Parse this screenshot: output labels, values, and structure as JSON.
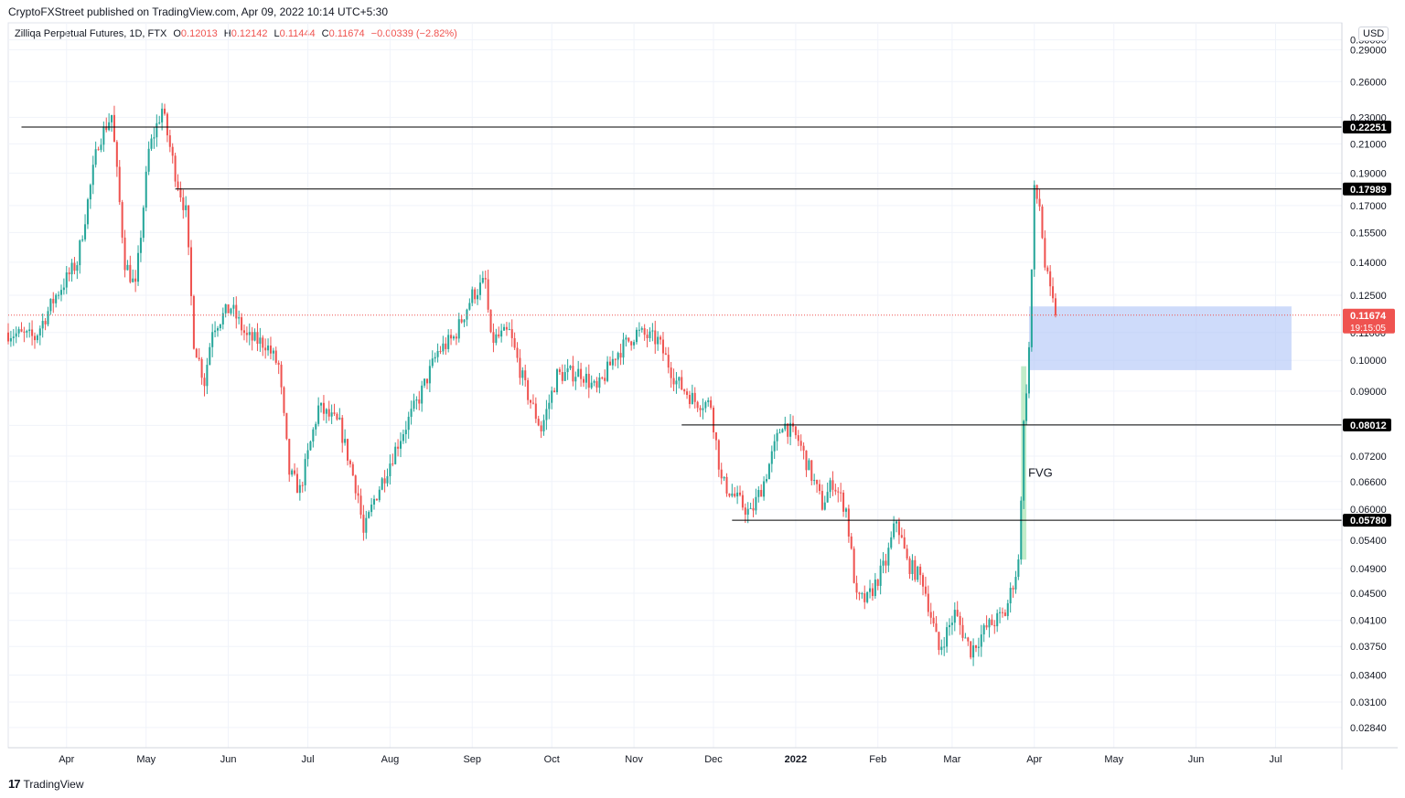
{
  "header": {
    "publisher_line": "CryptoFXStreet published on TradingView.com, Apr 09, 2022 10:14 UTC+5:30"
  },
  "legend": {
    "symbol": "Zilliqa Perpetual Futures, 1D, FTX",
    "o_label": "O",
    "o_value": "0.12013",
    "h_label": "H",
    "h_value": "0.12142",
    "l_label": "L",
    "l_value": "0.11444",
    "c_label": "C",
    "c_value": "0.11674",
    "change": "−0.00339 (−2.82%)"
  },
  "currency_badge": "USD",
  "footer": {
    "brand": "TradingView",
    "logo_glyph": "17"
  },
  "colors": {
    "up": "#26a69a",
    "down": "#ef5350",
    "zone": "#b3c7f7",
    "fvg": "#b7e9c0",
    "level": "#000000",
    "last_price": "#ef5350"
  },
  "chart_data": {
    "type": "candlestick",
    "title": "Zilliqa Perpetual Futures, 1D, FTX",
    "y_scale": "log",
    "ylim": [
      0.0265,
      0.318
    ],
    "xlim": [
      "2021-03-10",
      "2022-07-26"
    ],
    "grid": true,
    "y_ticks": [
      0.3,
      0.29,
      0.26,
      0.23,
      0.21,
      0.19,
      0.17,
      0.155,
      0.14,
      0.125,
      0.11,
      0.1,
      0.09,
      0.08,
      0.072,
      0.066,
      0.06,
      0.054,
      0.049,
      0.045,
      0.041,
      0.0375,
      0.034,
      0.031,
      0.0284
    ],
    "x_ticks": [
      {
        "label": "Apr",
        "date": "2021-04-01",
        "bold": false
      },
      {
        "label": "May",
        "date": "2021-05-01",
        "bold": false
      },
      {
        "label": "Jun",
        "date": "2021-06-01",
        "bold": false
      },
      {
        "label": "Jul",
        "date": "2021-07-01",
        "bold": false
      },
      {
        "label": "Aug",
        "date": "2021-08-01",
        "bold": false
      },
      {
        "label": "Sep",
        "date": "2021-09-01",
        "bold": false
      },
      {
        "label": "Oct",
        "date": "2021-10-01",
        "bold": false
      },
      {
        "label": "Nov",
        "date": "2021-11-01",
        "bold": false
      },
      {
        "label": "Dec",
        "date": "2021-12-01",
        "bold": false
      },
      {
        "label": "2022",
        "date": "2022-01-01",
        "bold": true
      },
      {
        "label": "Feb",
        "date": "2022-02-01",
        "bold": false
      },
      {
        "label": "Mar",
        "date": "2022-03-01",
        "bold": false
      },
      {
        "label": "Apr",
        "date": "2022-04-01",
        "bold": false
      },
      {
        "label": "May",
        "date": "2022-05-01",
        "bold": false
      },
      {
        "label": "Jun",
        "date": "2022-06-01",
        "bold": false
      },
      {
        "label": "Jul",
        "date": "2022-07-01",
        "bold": false
      }
    ],
    "levels": [
      {
        "value": 0.22251,
        "label": "0.22251",
        "from": "2021-03-15"
      },
      {
        "value": 0.17989,
        "label": "0.17989",
        "from": "2021-05-12"
      },
      {
        "value": 0.08012,
        "label": "0.08012",
        "from": "2021-11-19"
      },
      {
        "value": 0.0578,
        "label": "0.05780",
        "from": "2021-12-08"
      }
    ],
    "last_price": {
      "value": 0.11674,
      "label": "0.11674",
      "countdown": "19:15:05"
    },
    "zones": [
      {
        "name": "demand-zone",
        "from": "2022-03-30",
        "to": "2022-07-07",
        "low": 0.0967,
        "high": 0.1203
      }
    ],
    "fvg": {
      "label": "FVG",
      "from": "2022-03-27",
      "to": "2022-03-29",
      "low": 0.0505,
      "high": 0.098
    },
    "anchors": [
      [
        "2021-03-10",
        0.11
      ],
      [
        "2021-03-20",
        0.108
      ],
      [
        "2021-03-28",
        0.125
      ],
      [
        "2021-04-05",
        0.14
      ],
      [
        "2021-04-13",
        0.212
      ],
      [
        "2021-04-18",
        0.232
      ],
      [
        "2021-04-23",
        0.14
      ],
      [
        "2021-04-27",
        0.128
      ],
      [
        "2021-05-02",
        0.205
      ],
      [
        "2021-05-07",
        0.237
      ],
      [
        "2021-05-12",
        0.19
      ],
      [
        "2021-05-16",
        0.166
      ],
      [
        "2021-05-19",
        0.107
      ],
      [
        "2021-05-23",
        0.093
      ],
      [
        "2021-05-26",
        0.112
      ],
      [
        "2021-06-02",
        0.12
      ],
      [
        "2021-06-08",
        0.108
      ],
      [
        "2021-06-15",
        0.106
      ],
      [
        "2021-06-20",
        0.098
      ],
      [
        "2021-06-24",
        0.068
      ],
      [
        "2021-06-28",
        0.064
      ],
      [
        "2021-07-05",
        0.085
      ],
      [
        "2021-07-13",
        0.08
      ],
      [
        "2021-07-20",
        0.063
      ],
      [
        "2021-07-22",
        0.055
      ],
      [
        "2021-07-26",
        0.062
      ],
      [
        "2021-08-05",
        0.077
      ],
      [
        "2021-08-12",
        0.088
      ],
      [
        "2021-08-19",
        0.103
      ],
      [
        "2021-08-25",
        0.108
      ],
      [
        "2021-09-01",
        0.125
      ],
      [
        "2021-09-06",
        0.131
      ],
      [
        "2021-09-08",
        0.107
      ],
      [
        "2021-09-15",
        0.11
      ],
      [
        "2021-09-21",
        0.091
      ],
      [
        "2021-09-27",
        0.079
      ],
      [
        "2021-10-03",
        0.095
      ],
      [
        "2021-10-12",
        0.096
      ],
      [
        "2021-10-18",
        0.09
      ],
      [
        "2021-10-25",
        0.102
      ],
      [
        "2021-11-02",
        0.11
      ],
      [
        "2021-11-10",
        0.107
      ],
      [
        "2021-11-17",
        0.093
      ],
      [
        "2021-11-24",
        0.087
      ],
      [
        "2021-11-30",
        0.086
      ],
      [
        "2021-12-04",
        0.066
      ],
      [
        "2021-12-10",
        0.062
      ],
      [
        "2021-12-15",
        0.059
      ],
      [
        "2021-12-20",
        0.066
      ],
      [
        "2021-12-27",
        0.081
      ],
      [
        "2022-01-02",
        0.076
      ],
      [
        "2022-01-06",
        0.069
      ],
      [
        "2022-01-11",
        0.061
      ],
      [
        "2022-01-15",
        0.066
      ],
      [
        "2022-01-20",
        0.06
      ],
      [
        "2022-01-24",
        0.044
      ],
      [
        "2022-01-28",
        0.044
      ],
      [
        "2022-02-04",
        0.05
      ],
      [
        "2022-02-08",
        0.058
      ],
      [
        "2022-02-12",
        0.05
      ],
      [
        "2022-02-18",
        0.047
      ],
      [
        "2022-02-24",
        0.037
      ],
      [
        "2022-03-02",
        0.042
      ],
      [
        "2022-03-08",
        0.037
      ],
      [
        "2022-03-14",
        0.04
      ],
      [
        "2022-03-21",
        0.042
      ],
      [
        "2022-03-26",
        0.05
      ],
      [
        "2022-03-28",
        0.08
      ],
      [
        "2022-03-30",
        0.104
      ],
      [
        "2022-04-01",
        0.178
      ],
      [
        "2022-04-03",
        0.17
      ],
      [
        "2022-04-05",
        0.138
      ],
      [
        "2022-04-07",
        0.126
      ],
      [
        "2022-04-09",
        0.11674
      ]
    ]
  }
}
